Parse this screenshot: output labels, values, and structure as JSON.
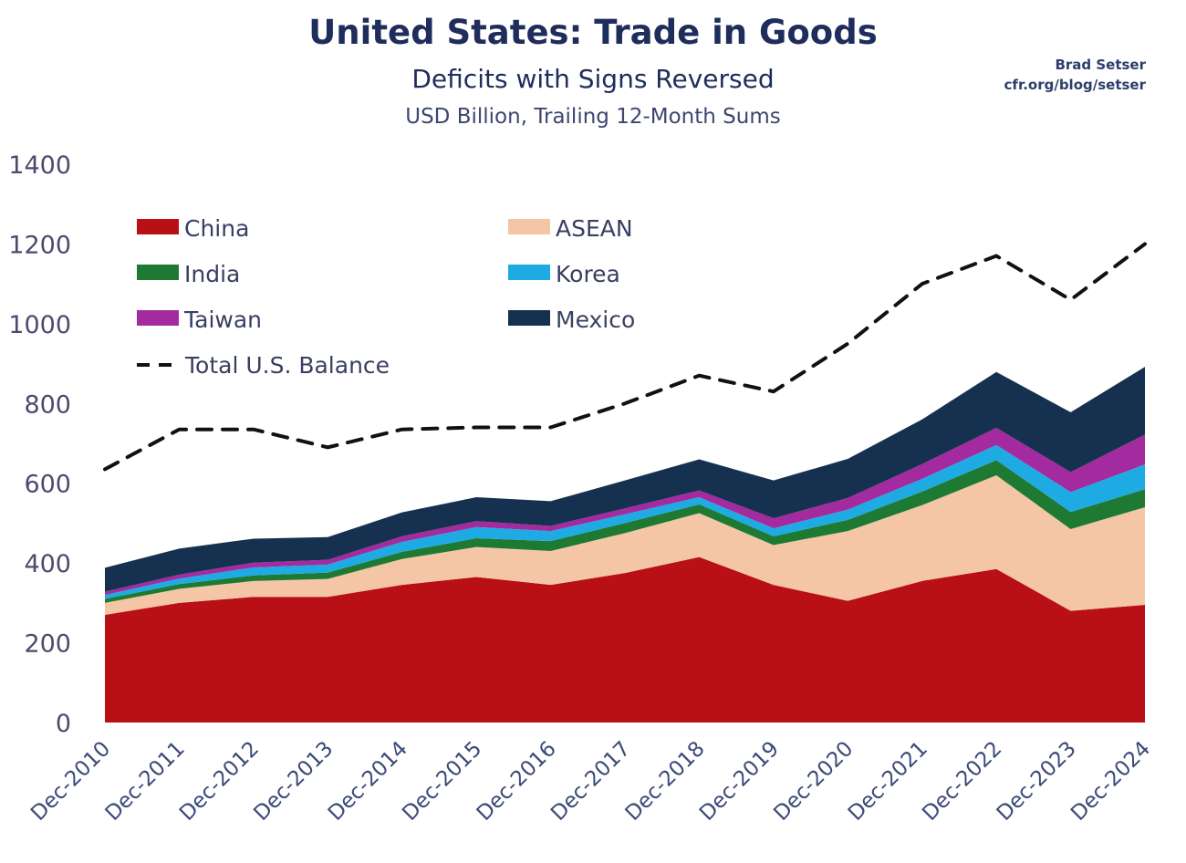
{
  "title": "United States: Trade in Goods",
  "subtitle": "Deficits with Signs Reversed",
  "units": "USD Billion, Trailing 12-Month Sums",
  "credit": {
    "author": "Brad Setser",
    "source": "cfr.org/blog/setser"
  },
  "chart_data": {
    "type": "area",
    "stacked": true,
    "x": [
      "Dec-2010",
      "Dec-2011",
      "Dec-2012",
      "Dec-2013",
      "Dec-2014",
      "Dec-2015",
      "Dec-2016",
      "Dec-2017",
      "Dec-2018",
      "Dec-2019",
      "Dec-2020",
      "Dec-2021",
      "Dec-2022",
      "Dec-2023",
      "Dec-2024"
    ],
    "ylim": [
      0,
      1400
    ],
    "yticks": [
      0,
      200,
      400,
      600,
      800,
      1000,
      1200,
      1400
    ],
    "legend_position": "top-left",
    "grid": false,
    "series": [
      {
        "name": "China",
        "color": "#b81015",
        "values": [
          270,
          300,
          315,
          315,
          345,
          365,
          345,
          375,
          415,
          345,
          305,
          355,
          385,
          280,
          295
        ]
      },
      {
        "name": "ASEAN",
        "color": "#f4c6a6",
        "values": [
          30,
          35,
          40,
          45,
          65,
          75,
          85,
          100,
          110,
          100,
          175,
          190,
          235,
          205,
          245
        ]
      },
      {
        "name": "India",
        "color": "#1e7a33",
        "values": [
          10,
          12,
          14,
          16,
          18,
          22,
          25,
          25,
          22,
          22,
          28,
          34,
          38,
          43,
          45
        ]
      },
      {
        "name": "Korea",
        "color": "#1eabe3",
        "values": [
          10,
          14,
          20,
          20,
          25,
          28,
          25,
          22,
          18,
          20,
          26,
          32,
          38,
          50,
          62
        ]
      },
      {
        "name": "Taiwan",
        "color": "#a32a9f",
        "values": [
          8,
          10,
          12,
          12,
          14,
          15,
          13,
          15,
          17,
          25,
          29,
          37,
          43,
          50,
          75
        ]
      },
      {
        "name": "Mexico",
        "color": "#16314f",
        "values": [
          60,
          65,
          60,
          57,
          60,
          60,
          62,
          70,
          78,
          95,
          98,
          112,
          140,
          150,
          170
        ]
      }
    ],
    "line": {
      "name": "Total U.S. Balance",
      "color": "#111111",
      "style": "dashed",
      "values": [
        635,
        735,
        735,
        690,
        735,
        740,
        740,
        800,
        870,
        830,
        950,
        1100,
        1170,
        1060,
        1200
      ]
    }
  }
}
